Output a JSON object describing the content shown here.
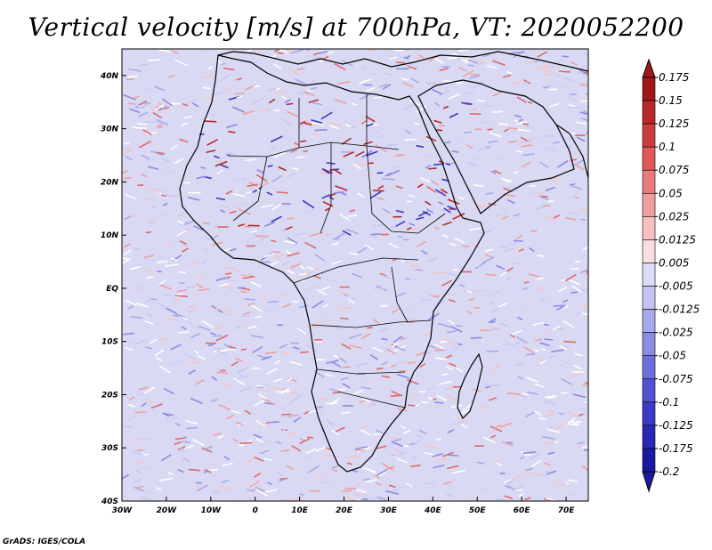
{
  "title": "Vertical velocity [m/s] at 700hPa, VT: 2020052200",
  "credit": "GrADS: IGES/COLA",
  "map": {
    "lon_range": [
      -30,
      75
    ],
    "lat_range": [
      -40,
      45
    ],
    "lon_labels": [
      {
        "lon": -30,
        "text": "30W"
      },
      {
        "lon": -20,
        "text": "20W"
      },
      {
        "lon": -10,
        "text": "10W"
      },
      {
        "lon": 0,
        "text": "0"
      },
      {
        "lon": 10,
        "text": "10E"
      },
      {
        "lon": 20,
        "text": "20E"
      },
      {
        "lon": 30,
        "text": "30E"
      },
      {
        "lon": 40,
        "text": "40E"
      },
      {
        "lon": 50,
        "text": "50E"
      },
      {
        "lon": 60,
        "text": "60E"
      },
      {
        "lon": 70,
        "text": "70E"
      }
    ],
    "lat_labels": [
      {
        "lat": 40,
        "text": "40N"
      },
      {
        "lat": 30,
        "text": "30N"
      },
      {
        "lat": 20,
        "text": "20N"
      },
      {
        "lat": 10,
        "text": "10N"
      },
      {
        "lat": 0,
        "text": "EQ"
      },
      {
        "lat": -10,
        "text": "10S"
      },
      {
        "lat": -20,
        "text": "20S"
      },
      {
        "lat": -30,
        "text": "30S"
      },
      {
        "lat": -40,
        "text": "40S"
      }
    ]
  },
  "colorbar": {
    "labels": [
      "0.175",
      "0.15",
      "0.125",
      "0.1",
      "0.075",
      "0.05",
      "0.025",
      "0.0125",
      "0.005",
      "-0.005",
      "-0.0125",
      "-0.025",
      "-0.05",
      "-0.075",
      "-0.1",
      "-0.125",
      "-0.175",
      "-0.2"
    ],
    "colors": [
      "#a01818",
      "#b82828",
      "#cc3c3c",
      "#de5a5a",
      "#e87c7c",
      "#f09e9e",
      "#f6c0c0",
      "#fbdede",
      "#ffffff",
      "#dcdcf8",
      "#c4c4f2",
      "#a8a8ec",
      "#8c8ce4",
      "#6e6edc",
      "#5252d0",
      "#3a3ac4",
      "#2828b4",
      "#1a1aa0"
    ]
  }
}
